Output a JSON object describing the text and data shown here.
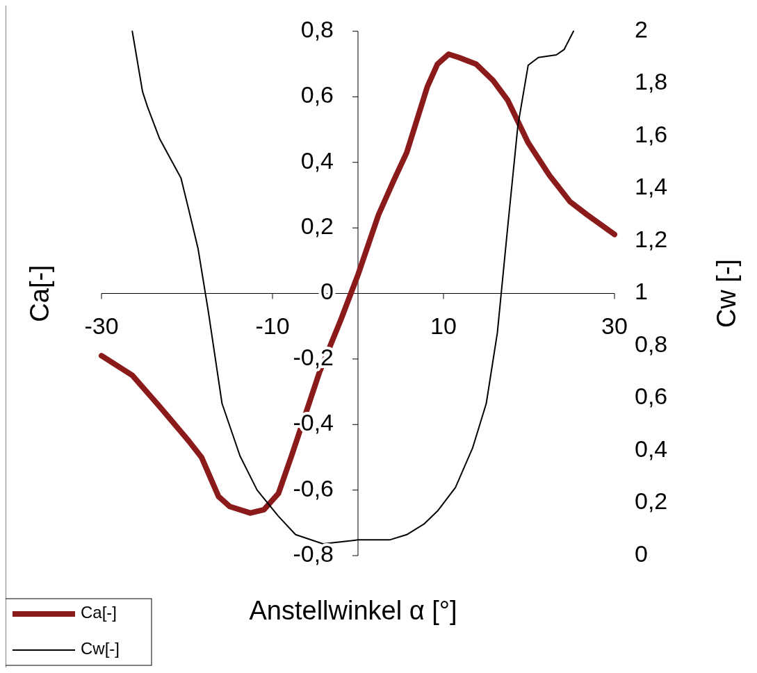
{
  "chart_data": {
    "type": "line",
    "xlabel": "Anstellwinkel  α [°]",
    "ylabel": "Ca[-]",
    "y2label": "Cw [-]",
    "xlim": [
      -30,
      30
    ],
    "xticks": [
      -30,
      -10,
      10,
      30
    ],
    "ylim": [
      -0.8,
      0.8
    ],
    "yticks": [
      {
        "value": -0.8,
        "label": "-0,8"
      },
      {
        "value": -0.6,
        "label": "-0,6"
      },
      {
        "value": -0.4,
        "label": "-0,4"
      },
      {
        "value": -0.2,
        "label": "-0,2"
      },
      0,
      {
        "value": 0.2,
        "label": "0,2"
      },
      {
        "value": 0.4,
        "label": "0,4"
      },
      {
        "value": 0.6,
        "label": "0,6"
      },
      {
        "value": 0.8,
        "label": "0,8"
      }
    ],
    "y2lim": [
      0,
      2
    ],
    "y2ticks": [
      0,
      {
        "value": 0.2,
        "label": "0,2"
      },
      {
        "value": 0.4,
        "label": "0,4"
      },
      {
        "value": 0.6,
        "label": "0,6"
      },
      {
        "value": 0.8,
        "label": "0,8"
      },
      1,
      {
        "value": 1.2,
        "label": "1,2"
      },
      {
        "value": 1.4,
        "label": "1,4"
      },
      {
        "value": 1.6,
        "label": "1,6"
      },
      {
        "value": 1.8,
        "label": "1,8"
      },
      2
    ],
    "grid": false,
    "legend": "bottom left",
    "marker": "none",
    "line_style": "solid",
    "series": [
      {
        "name": "Ca[-]",
        "color": "#8b1a1a",
        "x": [
          -30,
          -26.4,
          -23.2,
          -19.8,
          -18.3,
          -16.3,
          -15,
          -12.6,
          -11,
          -9.3,
          -7.7,
          -4.5,
          -2,
          0,
          2.4,
          4.1,
          5.7,
          8.1,
          9.3,
          10.6,
          11.8,
          13.8,
          15.8,
          17.5,
          19.9,
          22.4,
          24.8,
          26.8,
          30
        ],
        "values": [
          -0.19,
          -0.25,
          -0.345,
          -0.45,
          -0.5,
          -0.62,
          -0.65,
          -0.67,
          -0.66,
          -0.61,
          -0.49,
          -0.24,
          -0.08,
          0.057,
          0.24,
          0.34,
          0.43,
          0.63,
          0.7,
          0.73,
          0.72,
          0.7,
          0.65,
          0.59,
          0.46,
          0.36,
          0.28,
          0.24,
          0.18
        ]
      },
      {
        "name": "Cw[-]",
        "color": "#000000",
        "axis": "y2",
        "x": [
          -26.4,
          -25.2,
          -24.6,
          -23.2,
          -20.7,
          -19.8,
          -18.7,
          -17.5,
          -15.9,
          -13.8,
          -11.8,
          -9.3,
          -7.3,
          -4.1,
          0,
          3.7,
          5.7,
          7.7,
          9.3,
          11.4,
          13.4,
          15,
          16.3,
          17.5,
          18.7,
          19.9,
          21.1,
          23.2,
          24.1,
          25.2
        ],
        "values": [
          2,
          1.77,
          1.71,
          1.59,
          1.44,
          1.32,
          1.17,
          0.93,
          0.58,
          0.38,
          0.25,
          0.15,
          0.08,
          0.045,
          0.06,
          0.06,
          0.08,
          0.12,
          0.17,
          0.26,
          0.41,
          0.58,
          0.85,
          1.25,
          1.64,
          1.87,
          1.9,
          1.91,
          1.93,
          2
        ]
      }
    ]
  }
}
